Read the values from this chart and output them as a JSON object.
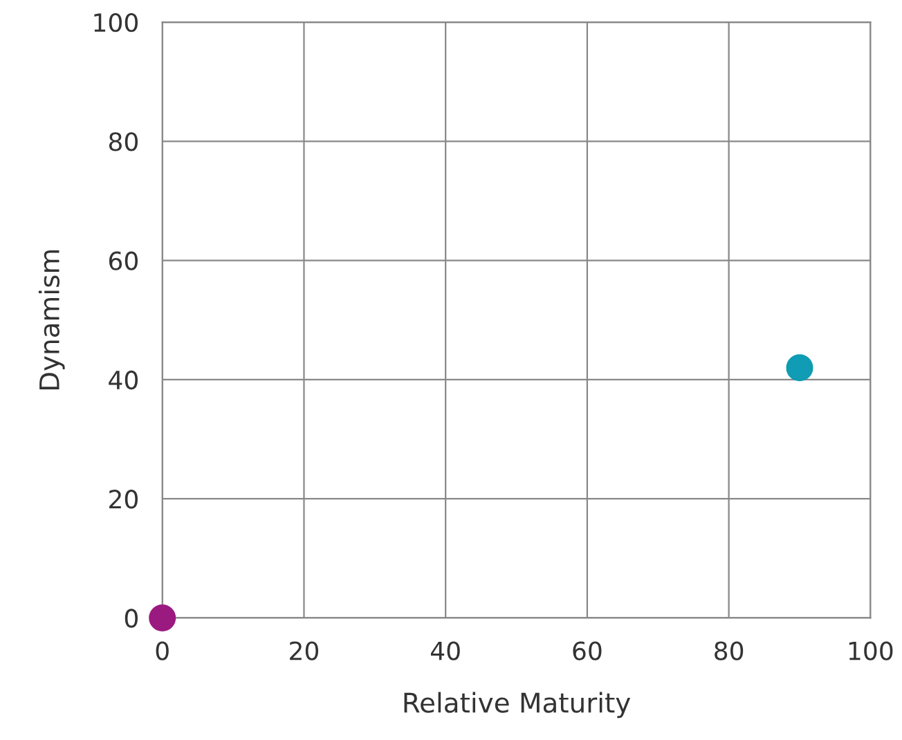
{
  "chart_data": {
    "type": "scatter",
    "xlabel": "Relative Maturity",
    "ylabel": "Dynamism",
    "series": [
      {
        "color": "#0f9cb4",
        "x": [
          90
        ],
        "values": [
          42
        ]
      },
      {
        "color": "#9b1a80",
        "x": [
          0
        ],
        "values": [
          0
        ]
      }
    ],
    "xlim": [
      0,
      100
    ],
    "ylim": [
      0,
      100
    ],
    "xticks": [
      0,
      20,
      40,
      60,
      80,
      100
    ],
    "yticks": [
      0,
      20,
      40,
      60,
      80,
      100
    ],
    "grid": true,
    "marker": "circle"
  }
}
